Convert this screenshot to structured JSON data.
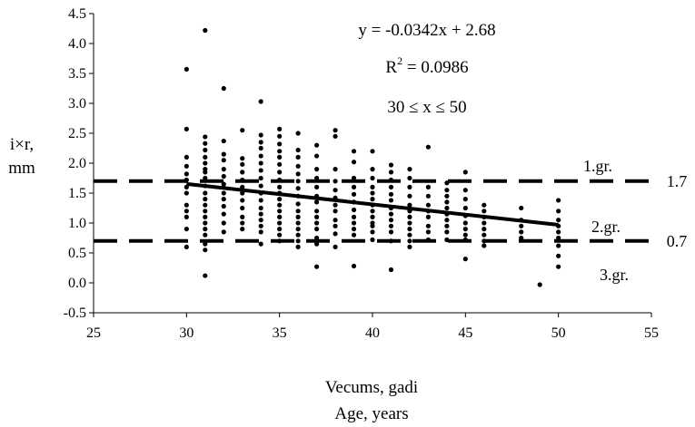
{
  "chart_data": {
    "type": "scatter",
    "xlabel_lines": [
      "Vecums, gadi",
      "Age, years"
    ],
    "ylabel_lines": [
      "i×r,",
      "mm"
    ],
    "xlim": [
      25,
      55
    ],
    "ylim": [
      -0.5,
      4.5
    ],
    "x_ticks": [
      25,
      30,
      35,
      40,
      45,
      50,
      55
    ],
    "y_ticks": [
      -0.5,
      0.0,
      0.5,
      1.0,
      1.5,
      2.0,
      2.5,
      3.0,
      3.5,
      4.0,
      4.5
    ],
    "y_tick_labels": [
      "-0.5",
      "0.0",
      "0.5",
      "1.0",
      "1.5",
      "2.0",
      "2.5",
      "3.0",
      "3.5",
      "4.0",
      "4.5"
    ],
    "grid": false,
    "annotations": {
      "equation": "y = -0.0342x + 2.68",
      "r_squared_label": "R",
      "r_squared_sup": "2",
      "r_squared_value": " = 0.0986",
      "range": "30 ≤ x ≤ 50",
      "group1": "1.gr.",
      "group2": "2.gr.",
      "group3": "3.gr.",
      "upper_threshold_label": "1.7",
      "lower_threshold_label": "0.7"
    },
    "thresholds": [
      1.7,
      0.7
    ],
    "trendline": {
      "slope": -0.0342,
      "intercept": 2.68,
      "x_range": [
        30,
        50
      ]
    },
    "series": [
      {
        "values": [
          [
            30,
            3.57
          ],
          [
            30,
            2.57
          ],
          [
            30,
            2.1
          ],
          [
            30,
            1.95
          ],
          [
            30,
            1.82
          ],
          [
            30,
            1.72
          ],
          [
            30,
            1.6
          ],
          [
            30,
            1.5
          ],
          [
            30,
            1.3
          ],
          [
            30,
            1.2
          ],
          [
            30,
            1.1
          ],
          [
            30,
            0.9
          ],
          [
            30,
            0.6
          ],
          [
            31,
            4.22
          ],
          [
            31,
            2.44
          ],
          [
            31,
            2.33
          ],
          [
            31,
            2.22
          ],
          [
            31,
            2.1
          ],
          [
            31,
            2.0
          ],
          [
            31,
            1.9
          ],
          [
            31,
            1.85
          ],
          [
            31,
            1.75
          ],
          [
            31,
            1.62
          ],
          [
            31,
            1.5
          ],
          [
            31,
            1.4
          ],
          [
            31,
            1.3
          ],
          [
            31,
            1.2
          ],
          [
            31,
            1.1
          ],
          [
            31,
            1.0
          ],
          [
            31,
            0.9
          ],
          [
            31,
            0.8
          ],
          [
            31,
            0.65
          ],
          [
            31,
            0.55
          ],
          [
            31,
            0.12
          ],
          [
            32,
            3.25
          ],
          [
            32,
            2.37
          ],
          [
            32,
            2.15
          ],
          [
            32,
            2.05
          ],
          [
            32,
            1.9
          ],
          [
            32,
            1.78
          ],
          [
            32,
            1.65
          ],
          [
            32,
            1.5
          ],
          [
            32,
            1.4
          ],
          [
            32,
            1.28
          ],
          [
            32,
            1.15
          ],
          [
            32,
            1.0
          ],
          [
            32,
            0.85
          ],
          [
            33,
            2.55
          ],
          [
            33,
            2.08
          ],
          [
            33,
            1.98
          ],
          [
            33,
            1.85
          ],
          [
            33,
            1.72
          ],
          [
            33,
            1.6
          ],
          [
            33,
            1.5
          ],
          [
            33,
            1.38
          ],
          [
            33,
            1.25
          ],
          [
            33,
            1.1
          ],
          [
            33,
            1.0
          ],
          [
            33,
            0.9
          ],
          [
            34,
            3.03
          ],
          [
            34,
            2.47
          ],
          [
            34,
            2.35
          ],
          [
            34,
            2.25
          ],
          [
            34,
            2.12
          ],
          [
            34,
            2.0
          ],
          [
            34,
            1.88
          ],
          [
            34,
            1.75
          ],
          [
            34,
            1.62
          ],
          [
            34,
            1.5
          ],
          [
            34,
            1.38
          ],
          [
            34,
            1.25
          ],
          [
            34,
            1.15
          ],
          [
            34,
            1.05
          ],
          [
            34,
            0.95
          ],
          [
            34,
            0.85
          ],
          [
            34,
            0.65
          ],
          [
            35,
            2.57
          ],
          [
            35,
            2.45
          ],
          [
            35,
            2.32
          ],
          [
            35,
            2.2
          ],
          [
            35,
            2.1
          ],
          [
            35,
            1.98
          ],
          [
            35,
            1.85
          ],
          [
            35,
            1.72
          ],
          [
            35,
            1.6
          ],
          [
            35,
            1.5
          ],
          [
            35,
            1.4
          ],
          [
            35,
            1.3
          ],
          [
            35,
            1.2
          ],
          [
            35,
            1.1
          ],
          [
            35,
            1.0
          ],
          [
            35,
            0.9
          ],
          [
            35,
            0.8
          ],
          [
            35,
            0.7
          ],
          [
            36,
            2.5
          ],
          [
            36,
            2.22
          ],
          [
            36,
            2.1
          ],
          [
            36,
            1.95
          ],
          [
            36,
            1.82
          ],
          [
            36,
            1.7
          ],
          [
            36,
            1.58
          ],
          [
            36,
            1.45
          ],
          [
            36,
            1.32
          ],
          [
            36,
            1.2
          ],
          [
            36,
            1.1
          ],
          [
            36,
            1.0
          ],
          [
            36,
            0.9
          ],
          [
            36,
            0.8
          ],
          [
            36,
            0.7
          ],
          [
            36,
            0.6
          ],
          [
            37,
            2.3
          ],
          [
            37,
            2.12
          ],
          [
            37,
            1.9
          ],
          [
            37,
            1.75
          ],
          [
            37,
            1.6
          ],
          [
            37,
            1.45
          ],
          [
            37,
            1.35
          ],
          [
            37,
            1.2
          ],
          [
            37,
            1.1
          ],
          [
            37,
            1.0
          ],
          [
            37,
            0.9
          ],
          [
            37,
            0.75
          ],
          [
            37,
            0.65
          ],
          [
            37,
            0.27
          ],
          [
            38,
            2.55
          ],
          [
            38,
            2.45
          ],
          [
            38,
            1.9
          ],
          [
            38,
            1.7
          ],
          [
            38,
            1.55
          ],
          [
            38,
            1.42
          ],
          [
            38,
            1.3
          ],
          [
            38,
            1.2
          ],
          [
            38,
            1.05
          ],
          [
            38,
            0.95
          ],
          [
            38,
            0.82
          ],
          [
            38,
            0.6
          ],
          [
            39,
            2.2
          ],
          [
            39,
            2.02
          ],
          [
            39,
            1.75
          ],
          [
            39,
            1.6
          ],
          [
            39,
            1.48
          ],
          [
            39,
            1.35
          ],
          [
            39,
            1.22
          ],
          [
            39,
            1.1
          ],
          [
            39,
            1.0
          ],
          [
            39,
            0.9
          ],
          [
            39,
            0.8
          ],
          [
            39,
            0.28
          ],
          [
            40,
            2.2
          ],
          [
            40,
            1.9
          ],
          [
            40,
            1.75
          ],
          [
            40,
            1.6
          ],
          [
            40,
            1.5
          ],
          [
            40,
            1.4
          ],
          [
            40,
            1.3
          ],
          [
            40,
            1.2
          ],
          [
            40,
            1.1
          ],
          [
            40,
            1.0
          ],
          [
            40,
            0.95
          ],
          [
            40,
            0.85
          ],
          [
            40,
            0.72
          ],
          [
            41,
            1.97
          ],
          [
            41,
            1.85
          ],
          [
            41,
            1.72
          ],
          [
            41,
            1.6
          ],
          [
            41,
            1.48
          ],
          [
            41,
            1.38
          ],
          [
            41,
            1.25
          ],
          [
            41,
            1.15
          ],
          [
            41,
            1.05
          ],
          [
            41,
            0.95
          ],
          [
            41,
            0.85
          ],
          [
            41,
            0.7
          ],
          [
            41,
            0.22
          ],
          [
            42,
            1.9
          ],
          [
            42,
            1.75
          ],
          [
            42,
            1.6
          ],
          [
            42,
            1.45
          ],
          [
            42,
            1.3
          ],
          [
            42,
            1.2
          ],
          [
            42,
            1.1
          ],
          [
            42,
            1.0
          ],
          [
            42,
            0.9
          ],
          [
            42,
            0.8
          ],
          [
            42,
            0.7
          ],
          [
            42,
            0.6
          ],
          [
            43,
            2.27
          ],
          [
            43,
            1.6
          ],
          [
            43,
            1.45
          ],
          [
            43,
            1.3
          ],
          [
            43,
            1.2
          ],
          [
            43,
            1.1
          ],
          [
            43,
            0.95
          ],
          [
            43,
            0.85
          ],
          [
            43,
            0.72
          ],
          [
            44,
            1.67
          ],
          [
            44,
            1.55
          ],
          [
            44,
            1.45
          ],
          [
            44,
            1.35
          ],
          [
            44,
            1.25
          ],
          [
            44,
            1.15
          ],
          [
            44,
            1.05
          ],
          [
            44,
            0.95
          ],
          [
            44,
            0.85
          ],
          [
            44,
            0.72
          ],
          [
            45,
            1.85
          ],
          [
            45,
            1.55
          ],
          [
            45,
            1.4
          ],
          [
            45,
            1.25
          ],
          [
            45,
            1.12
          ],
          [
            45,
            1.0
          ],
          [
            45,
            0.9
          ],
          [
            45,
            0.8
          ],
          [
            45,
            0.72
          ],
          [
            45,
            0.4
          ],
          [
            46,
            1.3
          ],
          [
            46,
            1.2
          ],
          [
            46,
            1.1
          ],
          [
            46,
            1.0
          ],
          [
            46,
            0.9
          ],
          [
            46,
            0.8
          ],
          [
            46,
            0.7
          ],
          [
            46,
            0.62
          ],
          [
            48,
            1.25
          ],
          [
            48,
            1.05
          ],
          [
            48,
            0.95
          ],
          [
            48,
            0.85
          ],
          [
            48,
            0.75
          ],
          [
            49,
            -0.03
          ],
          [
            50,
            1.38
          ],
          [
            50,
            1.2
          ],
          [
            50,
            1.05
          ],
          [
            50,
            0.95
          ],
          [
            50,
            0.85
          ],
          [
            50,
            0.75
          ],
          [
            50,
            0.62
          ],
          [
            50,
            0.45
          ],
          [
            50,
            0.27
          ]
        ]
      }
    ]
  }
}
